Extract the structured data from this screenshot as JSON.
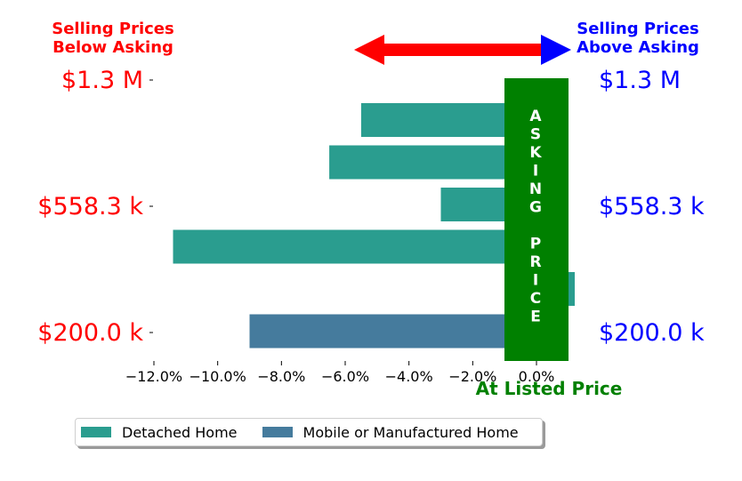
{
  "chart_data": {
    "type": "bar",
    "orientation": "horizontal",
    "series": [
      {
        "name": "Detached Home",
        "color": "#2a9d8f"
      },
      {
        "name": "Mobile or Manufactured Home",
        "color": "#457b9d"
      }
    ],
    "bars": [
      {
        "value": -5.5,
        "series": "Detached Home"
      },
      {
        "value": -6.5,
        "series": "Detached Home"
      },
      {
        "value": -3.0,
        "series": "Detached Home"
      },
      {
        "value": -11.4,
        "series": "Detached Home"
      },
      {
        "value": 1.2,
        "series": "Detached Home"
      },
      {
        "value": -9.0,
        "series": "Mobile or Manufactured Home"
      }
    ],
    "xlim": [
      -12.5,
      1.5
    ],
    "xticks": [
      {
        "value": -12,
        "label": "−12.0%"
      },
      {
        "value": -10,
        "label": "−10.0%"
      },
      {
        "value": -8,
        "label": "−8.0%"
      },
      {
        "value": -6,
        "label": "−6.0%"
      },
      {
        "value": -4,
        "label": "−4.0%"
      },
      {
        "value": -2,
        "label": "−2.0%"
      },
      {
        "value": 0,
        "label": "0.0%"
      }
    ],
    "left_price_labels": [
      "$1.3 M",
      "$558.3 k",
      "$200.0 k"
    ],
    "right_price_labels": [
      "$1.3 M",
      "$558.3 k",
      "$200.0 k"
    ],
    "below_asking_title": "Selling Prices\nBelow Asking",
    "above_asking_title": "Selling Prices\nAbove Asking",
    "asking_price_band_text": "ASKING PRICE",
    "at_listed_label": "At Listed Price",
    "colors": {
      "below": "#ff0000",
      "above": "#0000ff",
      "asking_band": "#008000",
      "arrow": "#ff0000",
      "arrow_right_head": "#0000ff"
    },
    "legend_position": "bottom-left",
    "grid": false
  }
}
